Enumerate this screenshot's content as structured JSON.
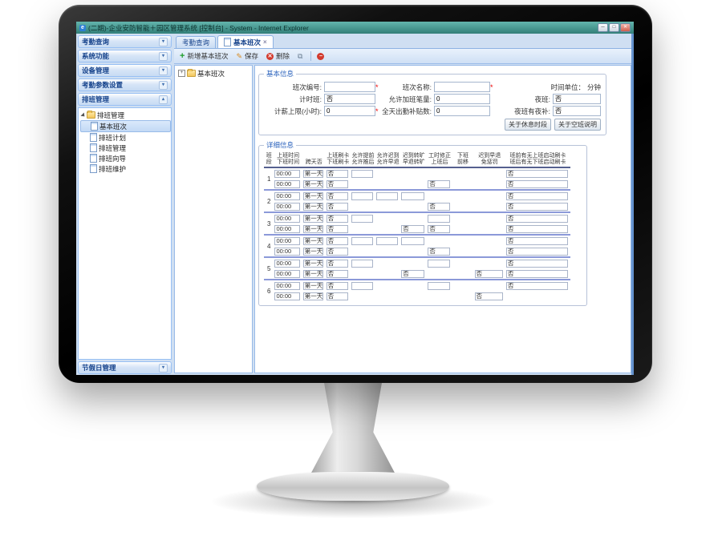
{
  "window": {
    "title": "(二期)-企业安防智能＋园区管理系统 [控制台] - System - Internet Explorer",
    "controls": {
      "minimize": "─",
      "maximize": "□",
      "close": "✕"
    },
    "ie_icon": "e"
  },
  "sidebar": {
    "panels": [
      {
        "label": "考勤查询"
      },
      {
        "label": "系统功能"
      },
      {
        "label": "设备管理"
      },
      {
        "label": "考勤参数设置"
      },
      {
        "label": "排班管理"
      }
    ],
    "tree": {
      "root": "排班管理",
      "items": [
        "基本班次",
        "排班计划",
        "排班管理",
        "排班向导",
        "排班维护"
      ],
      "selected": "基本班次"
    },
    "bottom_panel": "节假日管理"
  },
  "tabs": [
    {
      "label": "考勤查询"
    },
    {
      "label": "基本班次",
      "close": "×"
    }
  ],
  "toolbar": {
    "buttons": [
      {
        "name": "add",
        "label": "新增基本班次"
      },
      {
        "name": "save",
        "label": "保存"
      },
      {
        "name": "delete",
        "label": "删除"
      },
      {
        "name": "copy",
        "label": ""
      },
      {
        "name": "stop",
        "label": ""
      }
    ]
  },
  "nav_tree": {
    "root": "基本班次"
  },
  "form": {
    "legend": "基本信息",
    "fields": {
      "shift_code": {
        "label": "班次编号:",
        "value": "",
        "required": "*"
      },
      "shift_name": {
        "label": "班次名称:",
        "value": "",
        "required": "*"
      },
      "time_unit": {
        "label": "时间单位：",
        "value": "分钟"
      },
      "hourly": {
        "label": "计时班:",
        "value": "否"
      },
      "overtime_allow": {
        "label": "允许加班笔量:",
        "value": "0"
      },
      "night": {
        "label": "夜班:",
        "value": "否"
      },
      "pay_limit": {
        "label": "计薪上限(小时):",
        "value": "0",
        "required": "*"
      },
      "full_allowance": {
        "label": "全天出勤补贴数:",
        "value": "0"
      },
      "night_allowance": {
        "label": "夜班有夜补:",
        "value": "否"
      }
    },
    "buttons": [
      "关于休息时段",
      "关于空班说明"
    ]
  },
  "grid": {
    "legend": "详细信息",
    "columns": [
      {
        "l1": "班",
        "l2": "段"
      },
      {
        "l1": "上班时间",
        "l2": "下班时间"
      },
      {
        "l1": "跨天否",
        "l2": ""
      },
      {
        "l1": "上班刷卡",
        "l2": "下班刷卡"
      },
      {
        "l1": "允许提前",
        "l2": "允许推后"
      },
      {
        "l1": "允许迟到",
        "l2": "允许早退"
      },
      {
        "l1": "迟到转旷",
        "l2": "早退转旷"
      },
      {
        "l1": "工时修正",
        "l2": "上班后"
      },
      {
        "l1": "下班",
        "l2": "前移"
      },
      {
        "l1": "迟到早退",
        "l2": "免惩罚"
      },
      {
        "l1": "班前有无上班启动刷卡",
        "l2": "班后有无下班启动刷卡"
      }
    ],
    "rows": [
      {
        "no": "1",
        "subs": [
          {
            "time": "00:00",
            "day": "第一天",
            "card": "否",
            "cells": [
              "",
              null,
              null,
              null,
              null,
              null,
              "否"
            ]
          },
          {
            "time": "00:00",
            "day": "第一天",
            "card": "否",
            "cells": [
              null,
              null,
              null,
              "否",
              null,
              null,
              "否"
            ]
          }
        ]
      },
      {
        "no": "2",
        "subs": [
          {
            "time": "00:00",
            "day": "第一天",
            "card": "否",
            "cells": [
              "",
              "",
              "",
              null,
              null,
              null,
              "否"
            ]
          },
          {
            "time": "00:00",
            "day": "第一天",
            "card": "否",
            "cells": [
              null,
              null,
              null,
              "否",
              null,
              null,
              "否"
            ]
          }
        ]
      },
      {
        "no": "3",
        "subs": [
          {
            "time": "00:00",
            "day": "第一天",
            "card": "否",
            "cells": [
              "",
              null,
              null,
              "",
              null,
              null,
              "否"
            ]
          },
          {
            "time": "00:00",
            "day": "第一天",
            "card": "否",
            "cells": [
              null,
              null,
              "否",
              "否",
              null,
              null,
              "否"
            ]
          }
        ]
      },
      {
        "no": "4",
        "subs": [
          {
            "time": "00:00",
            "day": "第一天",
            "card": "否",
            "cells": [
              "",
              "",
              "",
              null,
              null,
              null,
              "否"
            ]
          },
          {
            "time": "00:00",
            "day": "第一天",
            "card": "否",
            "cells": [
              null,
              null,
              null,
              "否",
              null,
              null,
              "否"
            ]
          }
        ]
      },
      {
        "no": "5",
        "subs": [
          {
            "time": "00:00",
            "day": "第一天",
            "card": "否",
            "cells": [
              "",
              null,
              null,
              "",
              null,
              null,
              "否"
            ]
          },
          {
            "time": "00:00",
            "day": "第一天",
            "card": "否",
            "cells": [
              null,
              null,
              "否",
              null,
              null,
              "否",
              "否"
            ]
          }
        ]
      },
      {
        "no": "6",
        "subs": [
          {
            "time": "00:00",
            "day": "第一天",
            "card": "否",
            "cells": [
              "",
              null,
              null,
              "",
              null,
              null,
              "否"
            ]
          },
          {
            "time": "00:00",
            "day": "第一天",
            "card": "否",
            "cells": [
              null,
              null,
              null,
              null,
              null,
              "否",
              null
            ]
          }
        ]
      }
    ]
  }
}
